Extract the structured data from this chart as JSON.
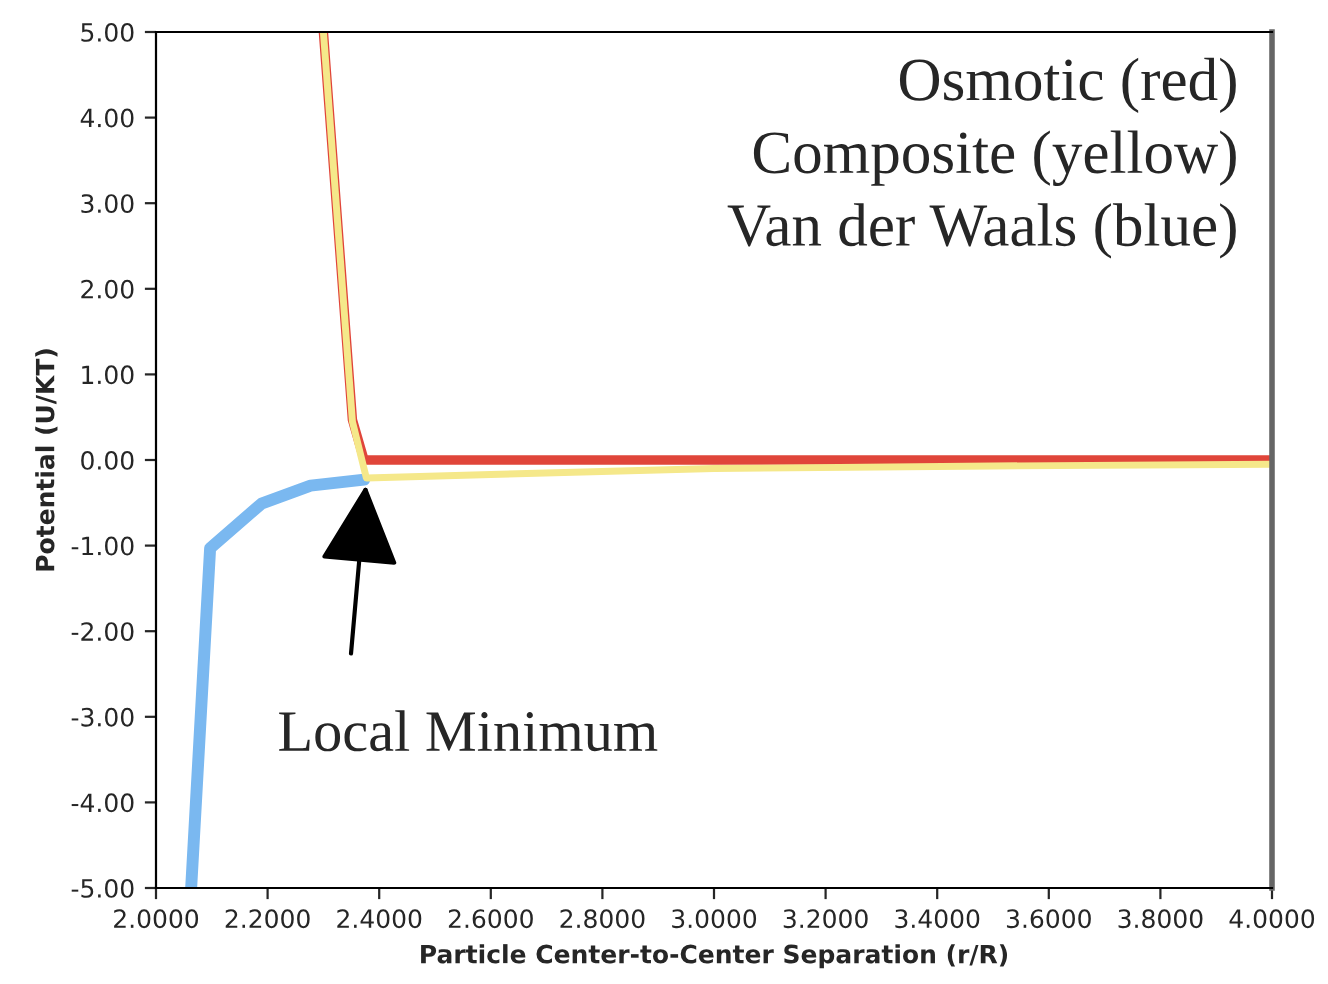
{
  "chart_data": {
    "type": "line",
    "xlabel": "Particle Center-to-Center Separation (r/R)",
    "ylabel": "Potential (U/KT)",
    "xlim": [
      2.0,
      4.0
    ],
    "xticks": [
      {
        "value": 2.0,
        "label": "2.0000"
      },
      {
        "value": 2.2,
        "label": "2.2000"
      },
      {
        "value": 2.4,
        "label": "2.4000"
      },
      {
        "value": 2.6,
        "label": "2.6000"
      },
      {
        "value": 2.8,
        "label": "2.8000"
      },
      {
        "value": 3.0,
        "label": "3.0000"
      },
      {
        "value": 3.2,
        "label": "3.2000"
      },
      {
        "value": 3.4,
        "label": "3.4000"
      },
      {
        "value": 3.6,
        "label": "3.6000"
      },
      {
        "value": 3.8,
        "label": "3.8000"
      },
      {
        "value": 4.0,
        "label": "4.0000"
      }
    ],
    "ylim": [
      -5,
      5
    ],
    "yticks": [
      {
        "value": -5,
        "label": "-5.00"
      },
      {
        "value": -4,
        "label": "-4.00"
      },
      {
        "value": -3,
        "label": "-3.00"
      },
      {
        "value": -2,
        "label": "-2.00"
      },
      {
        "value": -1,
        "label": "-1.00"
      },
      {
        "value": 0,
        "label": "0.00"
      },
      {
        "value": 1,
        "label": "1.00"
      },
      {
        "value": 2,
        "label": "2.00"
      },
      {
        "value": 3,
        "label": "3.00"
      },
      {
        "value": 4,
        "label": "4.00"
      },
      {
        "value": 5,
        "label": "5.00"
      }
    ],
    "grid": false,
    "marker": "none",
    "line_style": "solid",
    "series": [
      {
        "color": "#7ab8f0",
        "x": [
          2.063,
          2.097,
          2.189,
          2.277,
          2.373
        ],
        "values": [
          -5,
          -1.03,
          -0.51,
          -0.3,
          -0.23
        ]
      },
      {
        "color": "#e0453a",
        "x": [
          2.3,
          2.352,
          2.373,
          3.0,
          4.0
        ],
        "values": [
          5,
          0.47,
          0,
          0,
          0
        ]
      },
      {
        "color": "#f5e88a",
        "x": [
          2.3,
          2.352,
          2.377,
          2.6,
          3.0,
          3.5,
          4.0
        ],
        "values": [
          5,
          0.45,
          -0.21,
          -0.17,
          -0.1,
          -0.07,
          -0.05
        ]
      }
    ],
    "annotations": [
      "Osmotic (red)",
      "Composite (yellow)",
      "Van der Waals (blue)",
      {
        "text": "Local Minimum",
        "x": 2.377,
        "y": -0.23
      }
    ]
  }
}
